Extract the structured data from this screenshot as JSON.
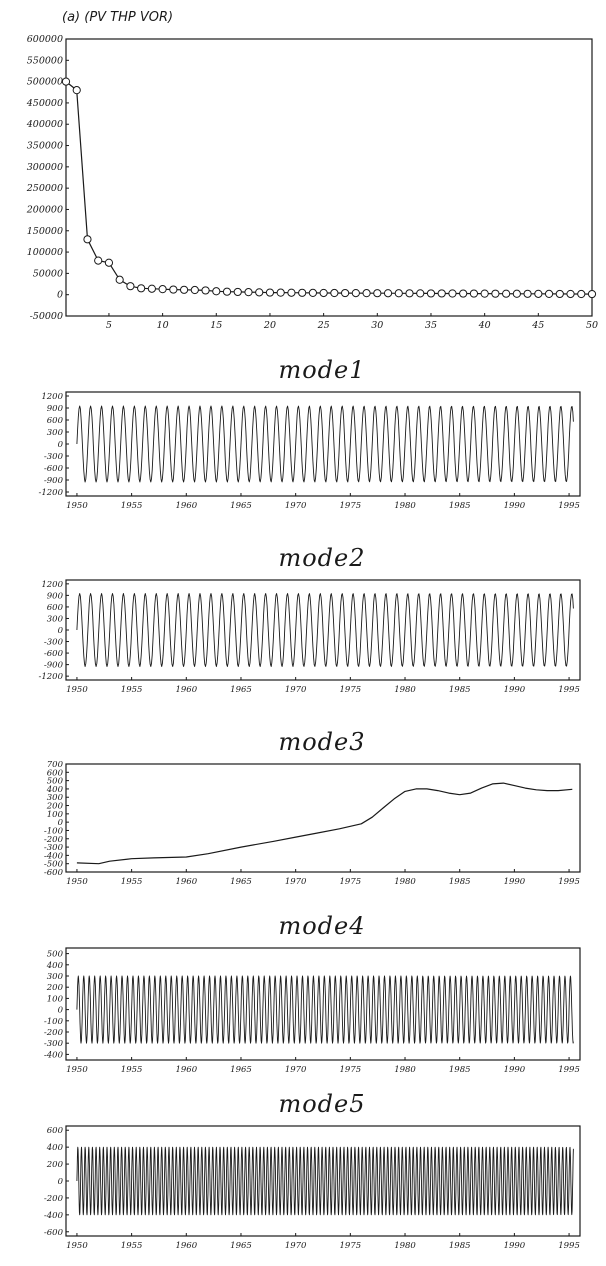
{
  "chart_data": [
    {
      "type": "line",
      "title": "(a) (PV THP VOR)",
      "xlim": [
        1,
        50
      ],
      "ylim": [
        -50000,
        600000
      ],
      "x_ticks": [
        "5",
        "10",
        "15",
        "20",
        "25",
        "30",
        "35",
        "40",
        "45",
        "50"
      ],
      "y_ticks": [
        "600000",
        "550000",
        "500000",
        "450000",
        "400000",
        "350000",
        "300000",
        "250000",
        "200000",
        "150000",
        "100000",
        "50000",
        "0",
        "-50000"
      ],
      "series": [
        {
          "x": [
            1,
            2,
            3,
            4,
            5,
            6,
            7,
            8,
            9,
            10,
            11,
            12,
            13,
            14,
            15,
            16,
            17,
            18,
            19,
            20,
            21,
            22,
            23,
            24,
            25,
            26,
            27,
            28,
            29,
            30,
            31,
            32,
            33,
            34,
            35,
            36,
            37,
            38,
            39,
            40,
            41,
            42,
            43,
            44,
            45,
            46,
            47,
            48,
            49,
            50
          ],
          "values": [
            500000,
            480000,
            130000,
            80000,
            75000,
            35000,
            20000,
            15000,
            14000,
            13000,
            12000,
            11500,
            11000,
            10000,
            8000,
            7000,
            6500,
            6000,
            5500,
            5000,
            4800,
            4600,
            4400,
            4200,
            4000,
            3900,
            3800,
            3700,
            3600,
            3500,
            3400,
            3300,
            3200,
            3100,
            3000,
            2900,
            2800,
            2700,
            2600,
            2500,
            2400,
            2300,
            2200,
            2100,
            2000,
            1900,
            1800,
            1700,
            1600,
            1500
          ]
        }
      ]
    },
    {
      "type": "line",
      "title": "mode1",
      "xlim": [
        1949,
        1996
      ],
      "ylim": [
        -1300,
        1300
      ],
      "x_ticks": [
        "1950",
        "1955",
        "1960",
        "1965",
        "1970",
        "1975",
        "1980",
        "1985",
        "1990",
        "1995"
      ],
      "y_ticks": [
        "1200",
        "900",
        "600",
        "300",
        "0",
        "-300",
        "-600",
        "-900",
        "-1200"
      ],
      "series": [
        {
          "kind": "oscillation",
          "cycles_per_year": 1.0,
          "amplitude": 950,
          "mean": 0
        }
      ]
    },
    {
      "type": "line",
      "title": "mode2",
      "xlim": [
        1949,
        1996
      ],
      "ylim": [
        -1300,
        1300
      ],
      "x_ticks": [
        "1950",
        "1955",
        "1960",
        "1965",
        "1970",
        "1975",
        "1980",
        "1985",
        "1990",
        "1995"
      ],
      "y_ticks": [
        "1200",
        "900",
        "600",
        "300",
        "0",
        "-300",
        "-600",
        "-900",
        "-1200"
      ],
      "series": [
        {
          "kind": "oscillation",
          "cycles_per_year": 1.0,
          "amplitude": 950,
          "mean": 0
        }
      ]
    },
    {
      "type": "line",
      "title": "mode3",
      "xlim": [
        1949,
        1996
      ],
      "ylim": [
        -600,
        700
      ],
      "x_ticks": [
        "1950",
        "1955",
        "1960",
        "1965",
        "1970",
        "1975",
        "1980",
        "1985",
        "1990",
        "1995"
      ],
      "y_ticks": [
        "700",
        "600",
        "500",
        "400",
        "300",
        "200",
        "100",
        "0",
        "-100",
        "-200",
        "-300",
        "-400",
        "-500",
        "-600"
      ],
      "series": [
        {
          "x": [
            1950,
            1952,
            1953,
            1955,
            1957,
            1960,
            1962,
            1965,
            1968,
            1970,
            1972,
            1974,
            1976,
            1977,
            1978,
            1979,
            1980,
            1981,
            1982,
            1983,
            1984,
            1985,
            1986,
            1987,
            1988,
            1989,
            1990,
            1991,
            1992,
            1993,
            1994,
            1995.3
          ],
          "values": [
            -490,
            -500,
            -470,
            -440,
            -430,
            -420,
            -380,
            -300,
            -230,
            -180,
            -130,
            -80,
            -20,
            60,
            170,
            280,
            370,
            400,
            400,
            380,
            350,
            330,
            350,
            410,
            460,
            470,
            440,
            410,
            390,
            380,
            380,
            395
          ]
        }
      ]
    },
    {
      "type": "line",
      "title": "mode4",
      "xlim": [
        1949,
        1996
      ],
      "ylim": [
        -450,
        550
      ],
      "x_ticks": [
        "1950",
        "1955",
        "1960",
        "1965",
        "1970",
        "1975",
        "1980",
        "1985",
        "1990",
        "1995"
      ],
      "y_ticks": [
        "500",
        "400",
        "300",
        "200",
        "100",
        "0",
        "-100",
        "-200",
        "-300",
        "-400"
      ],
      "series": [
        {
          "kind": "oscillation",
          "cycles_per_year": 2.0,
          "amplitude": 300,
          "mean": 0
        }
      ]
    },
    {
      "type": "line",
      "title": "mode5",
      "xlim": [
        1949,
        1996
      ],
      "ylim": [
        -650,
        650
      ],
      "x_ticks": [
        "1950",
        "1955",
        "1960",
        "1965",
        "1970",
        "1975",
        "1980",
        "1985",
        "1990",
        "1995"
      ],
      "y_ticks": [
        "600",
        "400",
        "200",
        "0",
        "-200",
        "-400",
        "-600"
      ],
      "series": [
        {
          "kind": "oscillation",
          "cycles_per_year": 3.0,
          "amplitude": 400,
          "mean": 0
        }
      ]
    }
  ]
}
